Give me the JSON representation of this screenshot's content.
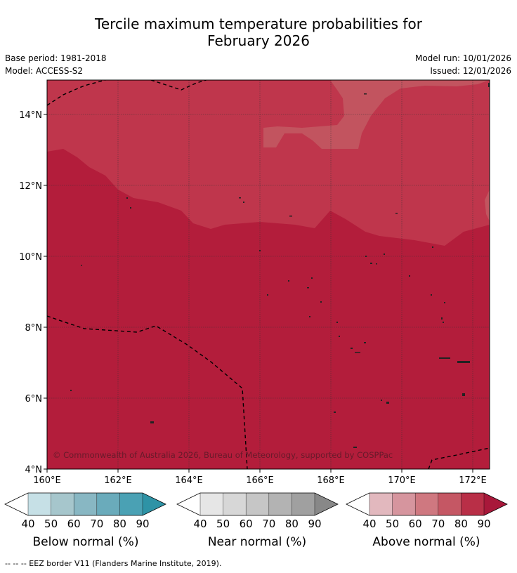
{
  "title_line1": "Tercile maximum temperature probabilities for",
  "title_line2": "February 2026",
  "base_period": "Base period: 1981-2018",
  "model": "Model: ACCESS-S2",
  "model_run": "Model run: 10/01/2026",
  "issued": "Issued: 12/01/2026",
  "copyright": "© Commonwealth of Australia 2026, Bureau of Meteorology, supported by COSPPac",
  "lon_ticks": [
    "160°E",
    "162°E",
    "164°E",
    "166°E",
    "168°E",
    "170°E",
    "172°E"
  ],
  "lat_ticks": [
    "14°N",
    "12°N",
    "10°N",
    "8°N",
    "6°N",
    "4°N"
  ],
  "colorbars": [
    {
      "label": "Below normal (%)",
      "ticks": [
        "40",
        "50",
        "60",
        "70",
        "80",
        "90"
      ],
      "colors": [
        "#ffffff",
        "#c6e0e6",
        "#a6c6cc",
        "#88b7c3",
        "#6aabbb",
        "#4aa1b4",
        "#2e93a6"
      ]
    },
    {
      "label": "Near normal (%)",
      "ticks": [
        "40",
        "50",
        "60",
        "70",
        "80",
        "90"
      ],
      "colors": [
        "#ffffff",
        "#e6e6e6",
        "#d7d7d7",
        "#c6c6c6",
        "#b3b3b3",
        "#a0a0a0",
        "#888888"
      ]
    },
    {
      "label": "Above normal (%)",
      "ticks": [
        "40",
        "50",
        "60",
        "70",
        "80",
        "90"
      ],
      "colors": [
        "#ffffff",
        "#e2b8be",
        "#d6959e",
        "#cf7880",
        "#c55764",
        "#b92f47",
        "#a8183a"
      ]
    }
  ],
  "legend_note": "-- -- -- EEZ border V11 (Flanders Marine Institute, 2019).",
  "colors": {
    "above_80_90": "#b31d3b",
    "above_70_80": "#bf364c",
    "above_60_70": "#c2545f"
  }
}
